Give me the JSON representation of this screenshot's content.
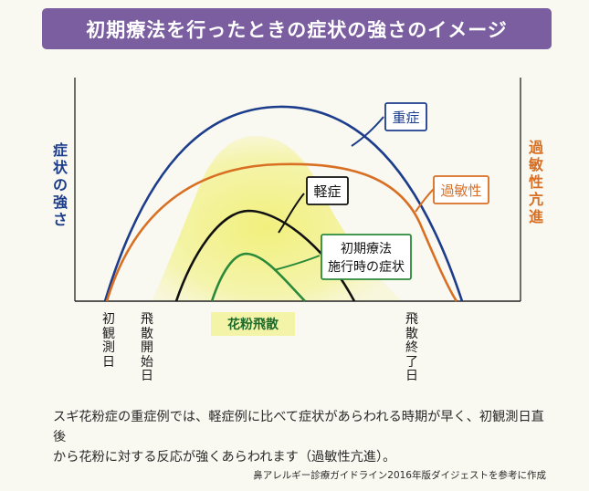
{
  "title": "初期療法を行ったときの症状の強さのイメージ",
  "axes": {
    "left_label": "症状の強さ",
    "right_label": "過敏性亢進"
  },
  "curves": [
    {
      "label": "重症",
      "color": "#1c3c8c"
    },
    {
      "label": "過敏性",
      "color": "#d86f22"
    },
    {
      "label": "軽症",
      "color": "#111111"
    },
    {
      "label_line1": "初期療法",
      "label_line2": "施行時の症状",
      "color": "#2a8a3a"
    }
  ],
  "pollen_region": {
    "label": "花粉飛散",
    "color": "#f4f4a8"
  },
  "time_labels": {
    "observation_start": "初観測日",
    "dispersal_start": "飛散開始日",
    "dispersal_end": "飛散終了日"
  },
  "caption": {
    "line1": "スギ花粉症の重症例では、軽症例に比べて症状があらわれる時期が早く、初観測日直後",
    "line2": "から花粉に対する反応が強くあらわれます（過敏性亢進）。"
  },
  "source": "鼻アレルギー診療ガイドライン2016年版ダイジェストを参考に作成",
  "colors": {
    "banner": "#7a5e9f",
    "severe": "#1c3c8c",
    "hypersensitivity": "#d86f22",
    "mild": "#111111",
    "early_therapy": "#2a8a3a",
    "pollen": "#f4f4a8"
  }
}
